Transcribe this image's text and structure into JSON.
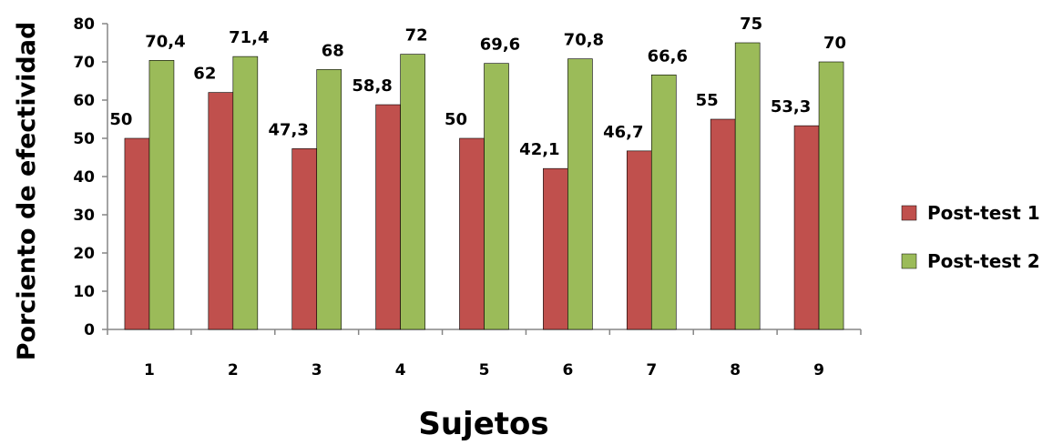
{
  "chart_data": {
    "type": "bar",
    "categories": [
      "1",
      "2",
      "3",
      "4",
      "5",
      "6",
      "7",
      "8",
      "9"
    ],
    "series": [
      {
        "name": "Post-test 1",
        "color": "#c0504d",
        "values": [
          50,
          62,
          47.3,
          58.8,
          50,
          42.1,
          46.7,
          55,
          53.3
        ],
        "labels": [
          "50",
          "62",
          "47,3",
          "58,8",
          "50",
          "42,1",
          "46,7",
          "55",
          "53,3"
        ]
      },
      {
        "name": "Post-test 2",
        "color": "#9bbb59",
        "values": [
          70.4,
          71.4,
          68,
          72,
          69.6,
          70.8,
          66.6,
          75,
          70
        ],
        "labels": [
          "70,4",
          "71,4",
          "68",
          "72",
          "69,6",
          "70,8",
          "66,6",
          "75",
          "70"
        ]
      }
    ],
    "xlabel": "Sujetos",
    "ylabel": "Porciento de efectividad",
    "ylim": [
      0,
      80
    ],
    "yticks": [
      "0",
      "10",
      "20",
      "30",
      "40",
      "50",
      "60",
      "70",
      "80"
    ],
    "grid": false,
    "legend_position": "right"
  }
}
